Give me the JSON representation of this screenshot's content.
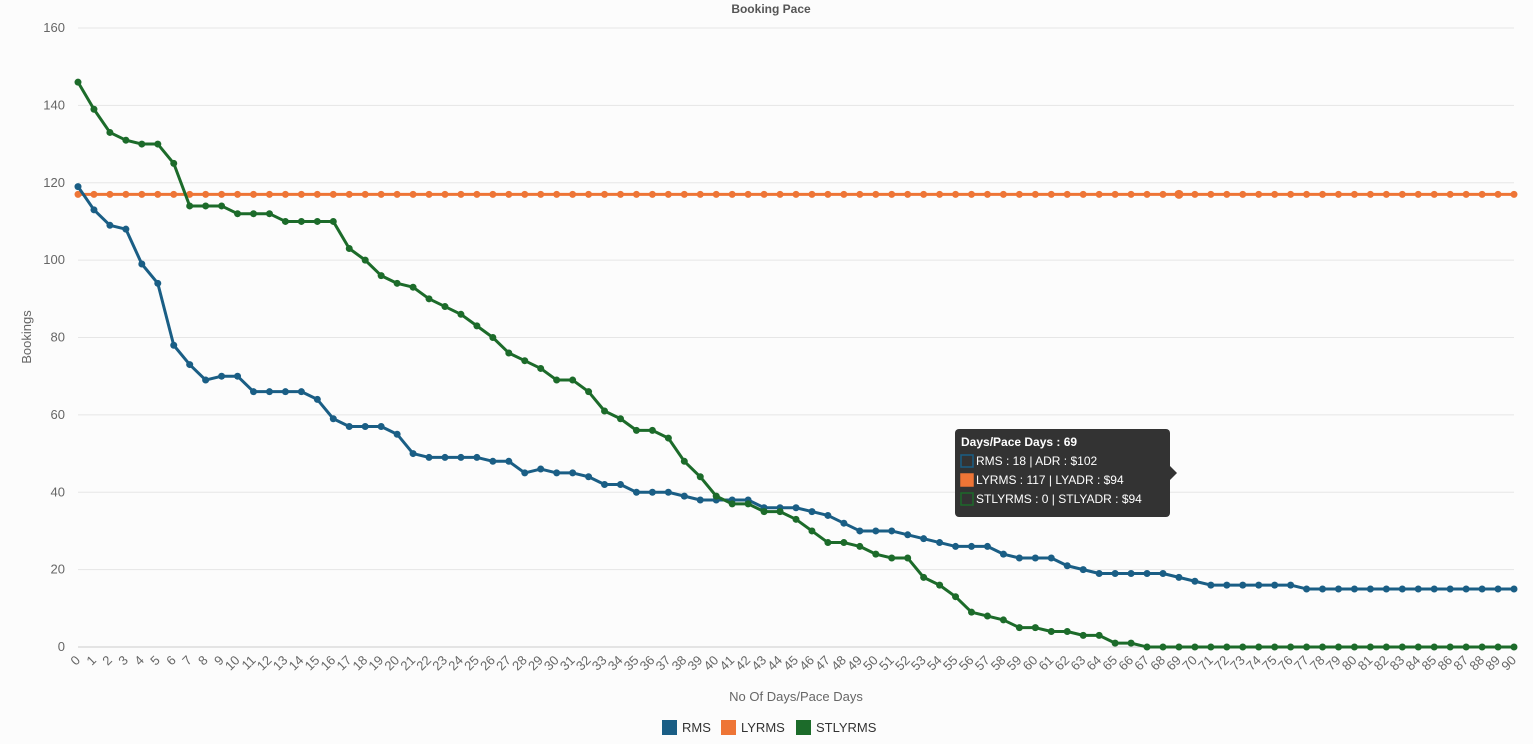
{
  "chart_data": {
    "type": "line",
    "title": "Booking Pace",
    "xlabel": "No Of Days/Pace Days",
    "ylabel": "Bookings",
    "ylim": [
      0,
      160
    ],
    "yticks": [
      0,
      20,
      40,
      60,
      80,
      100,
      120,
      140,
      160
    ],
    "xlim": [
      0,
      90
    ],
    "grid": true,
    "legend_position": "bottom-center",
    "x": [
      0,
      1,
      2,
      3,
      4,
      5,
      6,
      7,
      8,
      9,
      10,
      11,
      12,
      13,
      14,
      15,
      16,
      17,
      18,
      19,
      20,
      21,
      22,
      23,
      24,
      25,
      26,
      27,
      28,
      29,
      30,
      31,
      32,
      33,
      34,
      35,
      36,
      37,
      38,
      39,
      40,
      41,
      42,
      43,
      44,
      45,
      46,
      47,
      48,
      49,
      50,
      51,
      52,
      53,
      54,
      55,
      56,
      57,
      58,
      59,
      60,
      61,
      62,
      63,
      64,
      65,
      66,
      67,
      68,
      69,
      70,
      71,
      72,
      73,
      74,
      75,
      76,
      77,
      78,
      79,
      80,
      81,
      82,
      83,
      84,
      85,
      86,
      87,
      88,
      89,
      90
    ],
    "series": [
      {
        "name": "RMS",
        "color": "#1a5e85",
        "values": [
          119,
          113,
          109,
          108,
          99,
          94,
          78,
          73,
          69,
          70,
          70,
          66,
          66,
          66,
          66,
          64,
          59,
          57,
          57,
          57,
          55,
          50,
          49,
          49,
          49,
          49,
          48,
          48,
          45,
          46,
          45,
          45,
          44,
          42,
          42,
          40,
          40,
          40,
          39,
          38,
          38,
          38,
          38,
          36,
          36,
          36,
          35,
          34,
          32,
          30,
          30,
          30,
          29,
          28,
          27,
          26,
          26,
          26,
          24,
          23,
          23,
          23,
          21,
          20,
          19,
          19,
          19,
          19,
          19,
          18,
          17,
          16,
          16,
          16,
          16,
          16,
          16,
          15,
          15,
          15,
          15,
          15,
          15,
          15,
          15,
          15,
          15,
          15,
          15,
          15,
          15
        ]
      },
      {
        "name": "LYRMS",
        "color": "#ee7536",
        "values": [
          117,
          117,
          117,
          117,
          117,
          117,
          117,
          117,
          117,
          117,
          117,
          117,
          117,
          117,
          117,
          117,
          117,
          117,
          117,
          117,
          117,
          117,
          117,
          117,
          117,
          117,
          117,
          117,
          117,
          117,
          117,
          117,
          117,
          117,
          117,
          117,
          117,
          117,
          117,
          117,
          117,
          117,
          117,
          117,
          117,
          117,
          117,
          117,
          117,
          117,
          117,
          117,
          117,
          117,
          117,
          117,
          117,
          117,
          117,
          117,
          117,
          117,
          117,
          117,
          117,
          117,
          117,
          117,
          117,
          117,
          117,
          117,
          117,
          117,
          117,
          117,
          117,
          117,
          117,
          117,
          117,
          117,
          117,
          117,
          117,
          117,
          117,
          117,
          117,
          117,
          117
        ]
      },
      {
        "name": "STLYRMS",
        "color": "#1c6b2a",
        "values": [
          146,
          139,
          133,
          131,
          130,
          130,
          125,
          114,
          114,
          114,
          112,
          112,
          112,
          110,
          110,
          110,
          110,
          103,
          100,
          96,
          94,
          93,
          90,
          88,
          86,
          83,
          80,
          76,
          74,
          72,
          69,
          69,
          66,
          61,
          59,
          56,
          56,
          54,
          48,
          44,
          39,
          37,
          37,
          35,
          35,
          33,
          30,
          27,
          27,
          26,
          24,
          23,
          23,
          18,
          16,
          13,
          9,
          8,
          7,
          5,
          5,
          4,
          4,
          3,
          3,
          1,
          1,
          0,
          0,
          0,
          0,
          0,
          0,
          0,
          0,
          0,
          0,
          0,
          0,
          0,
          0,
          0,
          0,
          0,
          0,
          0,
          0,
          0,
          0,
          0,
          0
        ]
      }
    ],
    "tooltip": {
      "x": 69,
      "title": "Days/Pace Days : 69",
      "lines": [
        {
          "series": "RMS",
          "text": "RMS : 18 | ADR : $102"
        },
        {
          "series": "LYRMS",
          "text": "LYRMS : 117 | LYADR : $94"
        },
        {
          "series": "STLYRMS",
          "text": "STLYRMS : 0 | STLYADR : $94"
        }
      ]
    }
  }
}
